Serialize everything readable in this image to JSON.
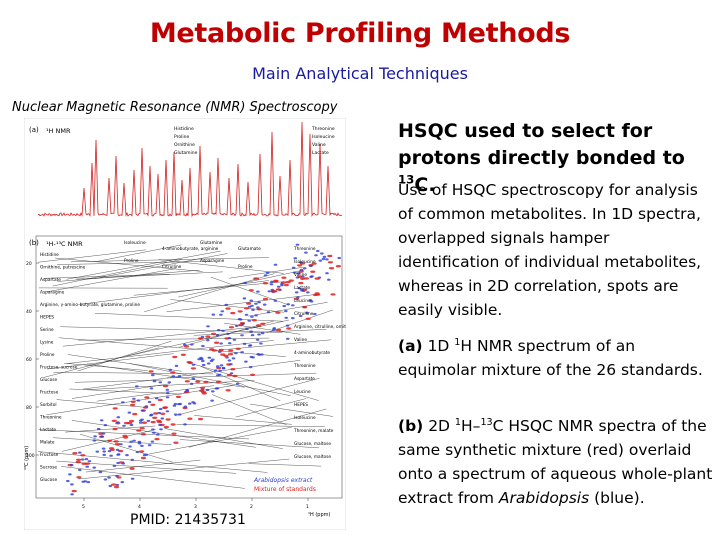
{
  "slide": {
    "title": "Metabolic Profiling Methods",
    "subtitle": "Main Analytical Techniques",
    "figure_caption": "Nuclear Magnetic Resonance (NMR) Spectroscopy",
    "pmid": "PMID: 21435731"
  },
  "figure": {
    "panel_a": {
      "letter": "(a)",
      "label": "¹H NMR"
    },
    "panel_b": {
      "letter": "(b)",
      "label": "¹H-¹³C NMR"
    },
    "y_ticks": [
      "20",
      "40",
      "60",
      "80",
      "100"
    ],
    "x_ticks": [
      "5",
      "4",
      "3",
      "2",
      "1"
    ],
    "y_axis_label": "¹³C (ppm)",
    "x_axis_label": "¹H (ppm)",
    "legend": [
      "Arabidopsis extract",
      "Mixture of standards"
    ],
    "colors": {
      "spectrum_red": "#d42020",
      "spot_blue": "#2a3bd8",
      "spot_red": "#e02020"
    },
    "peak_labels_1d": [
      "Threonine",
      "Isoleucine",
      "Valine",
      "Lactate",
      "Histidine",
      "Proline",
      "Ornithine",
      "Glutamine"
    ],
    "left_labels": [
      "Histidine",
      "Ornithine, putrescine",
      "Aspartate",
      "Asparagine",
      "Arginine, γ-amino-butyrate, glutamine, proline",
      "HEPES",
      "Serine",
      "Lysine",
      "Proline",
      "Fructose, sucrose",
      "Glucose",
      "Fructose",
      "Sorbitol",
      "Threonine",
      "Lactate",
      "Malate",
      "Fructose",
      "Sucrose",
      "Glucose"
    ],
    "right_labels": [
      "Threonine",
      "Isoleucine",
      "Valine",
      "Lactate",
      "Leucine",
      "Citrulline",
      "Arginine, citrulline, ornithine",
      "Valine",
      "4-aminobutyrate",
      "Threonine",
      "Aspartate",
      "Leucine",
      "HEPES",
      "Isoleucine",
      "Threonine, malate",
      "Glucose, maltose",
      "Glucose, maltose"
    ],
    "top_labels": [
      "Isoleucine",
      "4-aminobutyrate, arginine",
      "Glutamine",
      "Glutamate",
      "Proline",
      "Citrulline",
      "Asparagine",
      "Proline"
    ]
  },
  "text": {
    "headline_part1": "HSQC used to select for protons directly bonded to ",
    "headline_sup": "13",
    "headline_part2": "C.",
    "para1": "Use of HSQC spectroscopy for analysis of common metabolites. In 1D spectra, overlapped signals hamper identification of individual metabolites, whereas in 2D correlation, spots are easily visible.",
    "para2_label": "(a)",
    "para2_part1": " 1D ",
    "para2_sup": "1",
    "para2_part2": "H NMR spectrum of an equimolar mixture of the 26 standards.",
    "para3_label": "(b)",
    "para3_part1": " 2D ",
    "para3_sup1": "1",
    "para3_part2": "H–",
    "para3_sup2": "13",
    "para3_part3": "C HSQC NMR spectra of the same synthetic mixture (red) overlaid onto a spectrum of aqueous whole-plant extract from ",
    "para3_italic": "Arabidopsis",
    "para3_part4": " (blue)."
  }
}
